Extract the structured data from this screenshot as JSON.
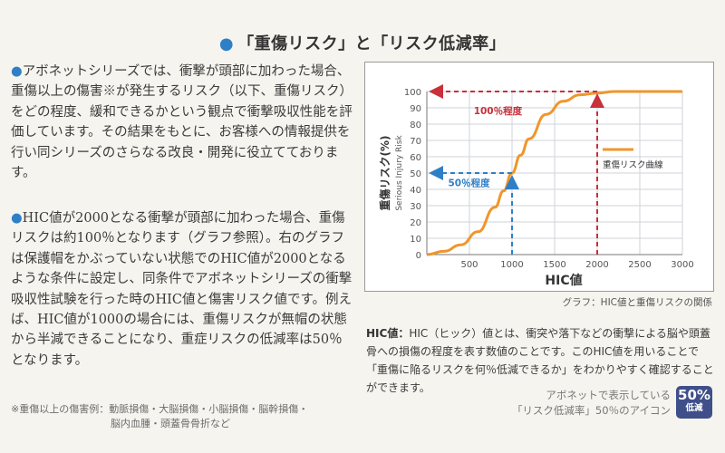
{
  "heading": {
    "dot": "●",
    "text": "「重傷リスク」と「リスク低減率」"
  },
  "paragraphs": [
    {
      "bullet": "●",
      "text": "アボネットシリーズでは、衝撃が頭部に加わった場合、重傷以上の傷害※が発生するリスク（以下、重傷リスク）をどの程度、緩和できるかという観点で衝撃吸収性能を評価しています。その結果をもとに、お客様への情報提供を行い同シリーズのさらなる改良・開発に役立てております。"
    },
    {
      "bullet": "●",
      "text": "HIC値が2000となる衝撃が頭部に加わった場合、重傷リスクは約100％となります（グラフ参照）。右のグラフは保護帽をかぶっていない状態でのHIC値が2000となるような条件に設定し、同条件でアボネットシリーズの衝撃吸収性試験を行った時のHIC値と傷害リスク値です。例えば、HIC値が1000の場合には、重傷リスクが無帽の状態から半減できることになり、重症リスクの低減率は50％となります。"
    }
  ],
  "footnote": [
    "※重傷以上の傷害例：動脈損傷・大脳損傷・小脳損傷・脳幹損傷・",
    "脳内血腫・頭蓋骨骨折など"
  ],
  "chart_data": {
    "type": "line",
    "xlabel": "HIC値",
    "ylabel": "重傷リスク(%)",
    "ylabel_en": "Serious Injury Risk",
    "xlim": [
      0,
      3000
    ],
    "ylim": [
      0,
      100
    ],
    "x_ticks": [
      500,
      1000,
      1500,
      2000,
      2500,
      3000
    ],
    "y_ticks": [
      0,
      10,
      20,
      30,
      40,
      50,
      60,
      70,
      80,
      90,
      100
    ],
    "legend": "重傷リスク曲線",
    "legend_position": "right",
    "series": [
      {
        "name": "重傷リスク曲線",
        "color": "#f0962a",
        "x": [
          0,
          200,
          400,
          600,
          800,
          900,
          1000,
          1100,
          1200,
          1400,
          1600,
          1800,
          2000,
          2200,
          2500,
          3000
        ],
        "y": [
          0,
          2,
          6,
          14,
          29,
          39,
          50,
          61,
          71,
          86,
          94,
          98,
          99,
          100,
          100,
          100
        ]
      }
    ],
    "annotations": [
      {
        "text": "100％程度",
        "x": 2000,
        "y": 100,
        "color": "#c8303a"
      },
      {
        "text": "50％程度",
        "x": 1000,
        "y": 50,
        "color": "#2f7fc7"
      }
    ]
  },
  "caption": "グラフ：HIC値と重傷リスクの関係",
  "hic_desc": {
    "term": "HIC値：",
    "text": "HIC（ヒック）値とは、衝突や落下などの衝撃による脳や頭蓋骨への損傷の程度を表す数値のことです。このHIC値を用いることで「重傷に陥るリスクを何％低減できるか」をわかりやすく確認することができます。"
  },
  "icon_note": [
    "アボネットで表示している",
    "「リスク低減率」50％のアイコン"
  ],
  "badge": {
    "percent": "50%",
    "label": "低減"
  }
}
